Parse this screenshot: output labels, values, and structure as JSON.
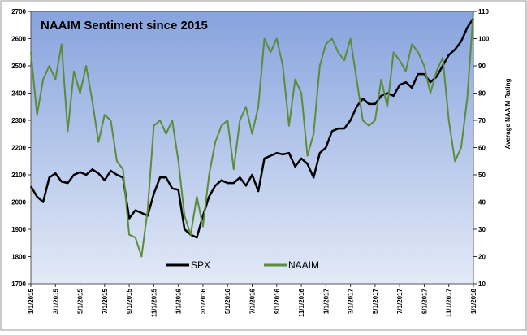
{
  "chart_data": {
    "type": "line",
    "title": "NAAIM Sentiment since 2015",
    "y2_label": "Average NAAIM Rating",
    "xlim": [
      0,
      36
    ],
    "xticks": [
      {
        "value": 0,
        "label": "1/1/2015"
      },
      {
        "value": 2,
        "label": "3/1/2015"
      },
      {
        "value": 4,
        "label": "5/1/2015"
      },
      {
        "value": 6,
        "label": "7/1/2015"
      },
      {
        "value": 8,
        "label": "9/1/2015"
      },
      {
        "value": 10,
        "label": "11/1/2015"
      },
      {
        "value": 12,
        "label": "1/1/2016"
      },
      {
        "value": 14,
        "label": "3/1/2016"
      },
      {
        "value": 16,
        "label": "5/1/2016"
      },
      {
        "value": 18,
        "label": "7/1/2016"
      },
      {
        "value": 20,
        "label": "9/1/2016"
      },
      {
        "value": 22,
        "label": "11/1/2016"
      },
      {
        "value": 24,
        "label": "1/1/2017"
      },
      {
        "value": 26,
        "label": "3/1/2017"
      },
      {
        "value": 28,
        "label": "5/1/2017"
      },
      {
        "value": 30,
        "label": "7/1/2017"
      },
      {
        "value": 32,
        "label": "9/1/2017"
      },
      {
        "value": 34,
        "label": "11/1/2017"
      },
      {
        "value": 36,
        "label": "1/1/2018"
      }
    ],
    "ylim": [
      1700,
      2700
    ],
    "yticks": [
      1700,
      1800,
      1900,
      2000,
      2100,
      2200,
      2300,
      2400,
      2500,
      2600,
      2700
    ],
    "y2lim": [
      10,
      110
    ],
    "y2ticks": [
      10,
      20,
      30,
      40,
      50,
      60,
      70,
      80,
      90,
      100,
      110
    ],
    "x": [
      0,
      0.5,
      1,
      1.5,
      2,
      2.5,
      3,
      3.5,
      4,
      4.5,
      5,
      5.5,
      6,
      6.5,
      7,
      7.5,
      8,
      8.5,
      9,
      9.5,
      10,
      10.5,
      11,
      11.5,
      12,
      12.5,
      13,
      13.5,
      14,
      14.5,
      15,
      15.5,
      16,
      16.5,
      17,
      17.5,
      18,
      18.5,
      19,
      19.5,
      20,
      20.5,
      21,
      21.5,
      22,
      22.5,
      23,
      23.5,
      24,
      24.5,
      25,
      25.5,
      26,
      26.5,
      27,
      27.5,
      28,
      28.5,
      29,
      29.5,
      30,
      30.5,
      31,
      31.5,
      32,
      32.5,
      33,
      33.5,
      34,
      34.5,
      35,
      35.5,
      36
    ],
    "series": [
      {
        "name": "SPX",
        "color": "#000000",
        "values": [
          2058,
          2020,
          2000,
          2090,
          2105,
          2075,
          2070,
          2100,
          2110,
          2100,
          2120,
          2105,
          2080,
          2115,
          2100,
          2090,
          1940,
          1970,
          1960,
          1950,
          2030,
          2090,
          2090,
          2050,
          2045,
          1900,
          1880,
          1870,
          1950,
          2020,
          2060,
          2080,
          2070,
          2070,
          2090,
          2060,
          2100,
          2040,
          2160,
          2170,
          2180,
          2175,
          2180,
          2130,
          2160,
          2140,
          2090,
          2180,
          2200,
          2260,
          2270,
          2270,
          2300,
          2350,
          2380,
          2360,
          2360,
          2390,
          2400,
          2390,
          2430,
          2440,
          2420,
          2470,
          2470,
          2440,
          2460,
          2500,
          2540,
          2560,
          2590,
          2640,
          2675
        ]
      },
      {
        "name": "NAAIM",
        "color": "#5b8c3a",
        "axis": "y2",
        "values": [
          95,
          72,
          85,
          90,
          85,
          98,
          66,
          88,
          80,
          90,
          77,
          62,
          72,
          70,
          55,
          52,
          28,
          27,
          20,
          37,
          68,
          70,
          65,
          70,
          55,
          35,
          28,
          42,
          31,
          50,
          62,
          68,
          70,
          52,
          70,
          75,
          65,
          75,
          100,
          95,
          100,
          90,
          68,
          85,
          80,
          57,
          65,
          90,
          98,
          100,
          95,
          92,
          100,
          85,
          70,
          68,
          70,
          85,
          75,
          95,
          92,
          88,
          98,
          95,
          90,
          80,
          88,
          93,
          70,
          55,
          60,
          78,
          110
        ]
      }
    ]
  }
}
